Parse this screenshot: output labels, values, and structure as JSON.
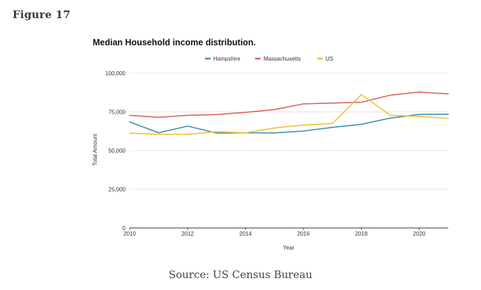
{
  "figure_label": "Figure 17",
  "source_note": "Source: US Census Bureau",
  "chart_data": {
    "type": "line",
    "title": "Median Household income distribution.",
    "xlabel": "Year",
    "ylabel": "Total Amount",
    "x": [
      2010,
      2011,
      2012,
      2013,
      2014,
      2015,
      2016,
      2017,
      2018,
      2019,
      2020,
      2021
    ],
    "xlim": [
      2010,
      2021
    ],
    "x_ticks": [
      "2010",
      "2012",
      "2014",
      "2016",
      "2018",
      "2020"
    ],
    "ylim": [
      0,
      100000
    ],
    "y_ticks": [
      "0",
      "25,000",
      "50,000",
      "75,000",
      "100,000"
    ],
    "grid": "horizontal",
    "legend_position": "top",
    "series": [
      {
        "name": "Hampshire",
        "color": "#3a8fb0",
        "values": [
          68500,
          61500,
          65800,
          61300,
          61500,
          61400,
          62600,
          65000,
          67000,
          71000,
          73400,
          73500
        ]
      },
      {
        "name": "Massachusetts",
        "color": "#d9635e",
        "values": [
          72800,
          71500,
          72800,
          73300,
          74700,
          76500,
          80200,
          80700,
          81200,
          85800,
          87800,
          86600
        ]
      },
      {
        "name": "US",
        "color": "#f2c12e",
        "values": [
          61300,
          60500,
          60500,
          62200,
          61500,
          64600,
          66500,
          67500,
          86200,
          72800,
          72100,
          70800
        ]
      }
    ]
  }
}
